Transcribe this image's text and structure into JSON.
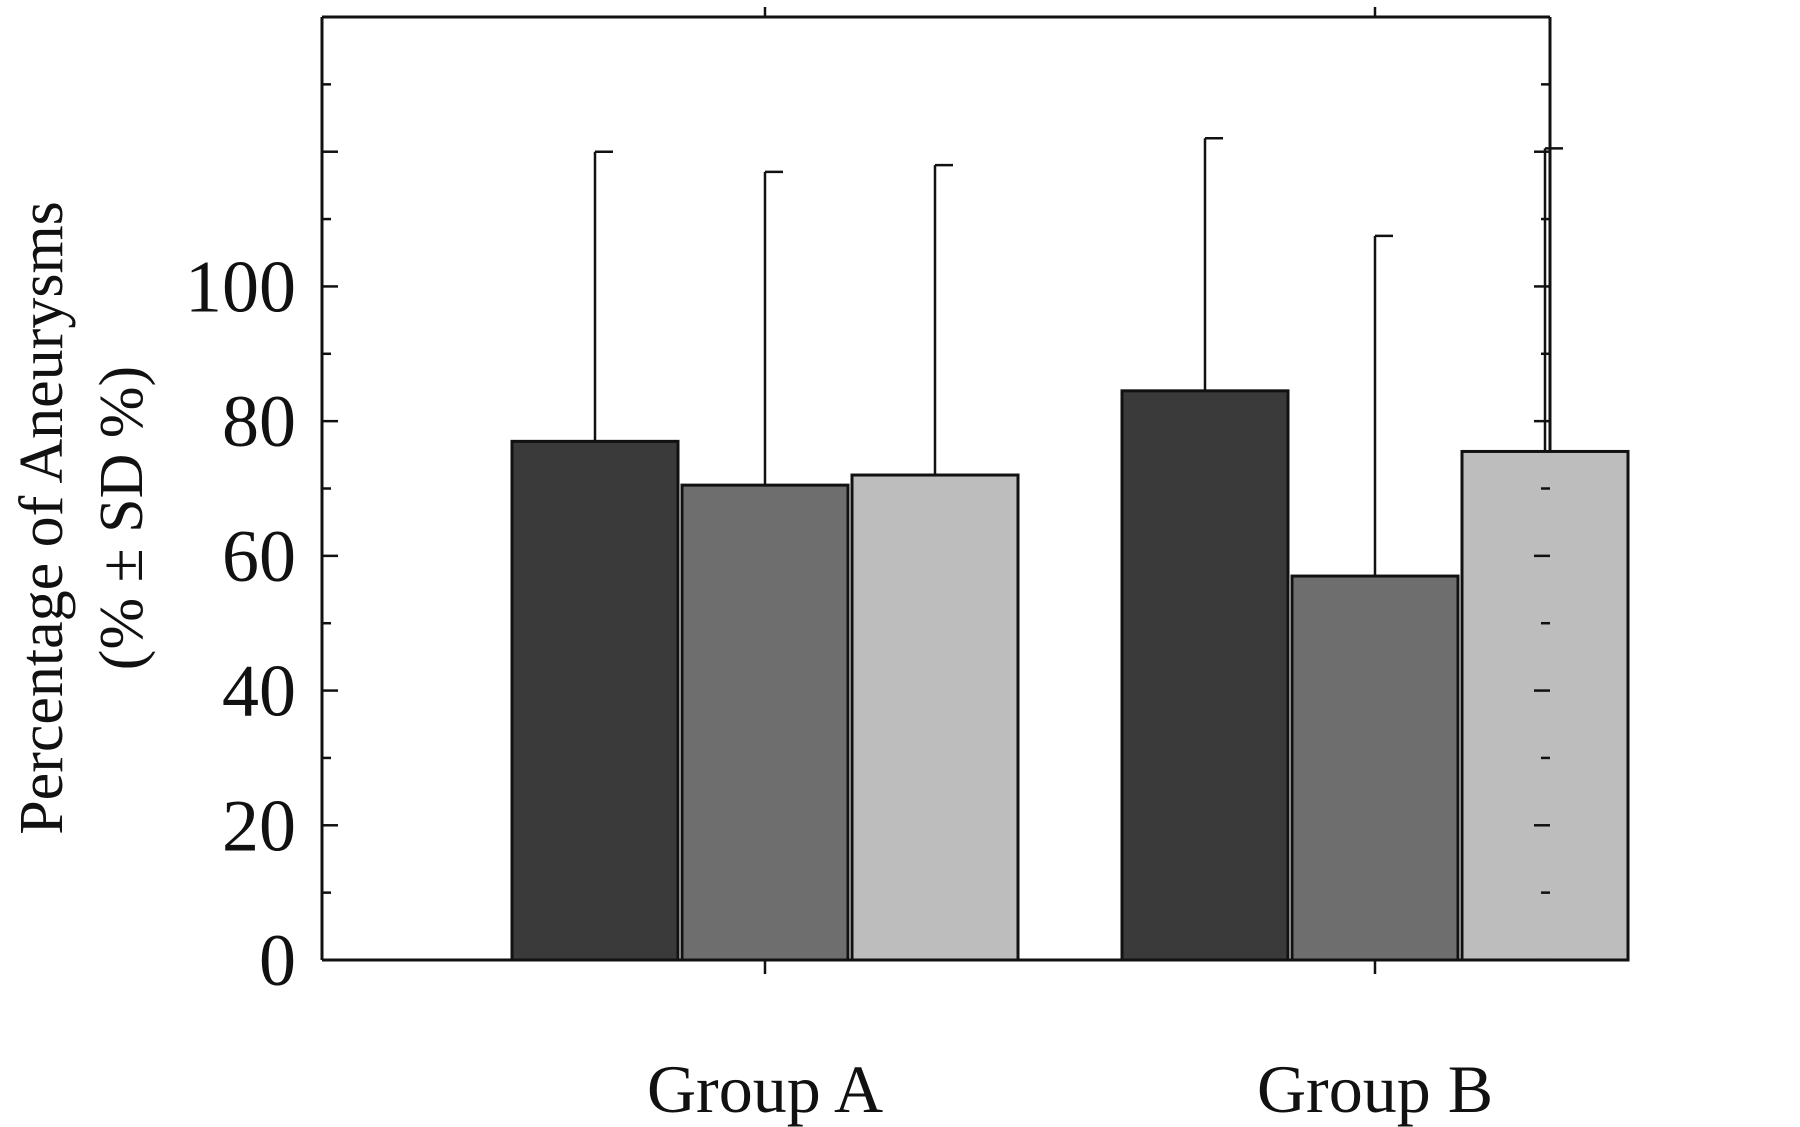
{
  "chart_data": {
    "type": "bar",
    "categories": [
      "Group A",
      "Group B"
    ],
    "series": [
      {
        "values": [
          77,
          84.5
        ],
        "errors": [
          43,
          37.5
        ],
        "color": "#3a3a3a"
      },
      {
        "values": [
          70.5,
          57
        ],
        "errors": [
          46.5,
          50.5
        ],
        "color": "#6e6e6e"
      },
      {
        "values": [
          72,
          75.5
        ],
        "errors": [
          46,
          45
        ],
        "color": "#bdbdbd"
      }
    ],
    "ylabel_line1": "Percentage of Aneurysms",
    "ylabel_line2": "(% ± SD %)",
    "ylim": [
      0,
      140
    ],
    "yticks": [
      0,
      20,
      40,
      60,
      80,
      100
    ],
    "xlabel": "",
    "title": "",
    "grid": false,
    "legend": "none"
  }
}
